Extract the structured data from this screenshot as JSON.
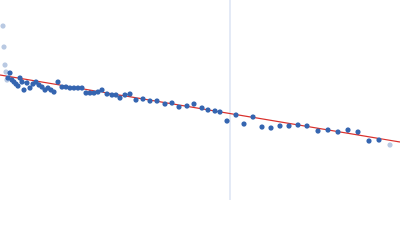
{
  "chart_data": {
    "type": "scatter",
    "xlim": [
      0,
      400
    ],
    "ylim": [
      0,
      200
    ],
    "vline": {
      "x": 230,
      "color": "#c9d5ec"
    },
    "series": [
      {
        "mode": "markers",
        "color": "#b9c9e2",
        "x": [
          3,
          4,
          5,
          6,
          7,
          390
        ],
        "values": [
          174,
          153,
          135,
          128,
          120,
          55
        ]
      },
      {
        "mode": "markers",
        "color": "#3565b0",
        "x": [
          8,
          10,
          12,
          14,
          16,
          18,
          20,
          22,
          24,
          27,
          30,
          33,
          36,
          39,
          42,
          45,
          48,
          51,
          54,
          58,
          62,
          66,
          70,
          74,
          78,
          82,
          86,
          90,
          94,
          98,
          102,
          107,
          112,
          116,
          120,
          125,
          130,
          136,
          143,
          150,
          157,
          165,
          172,
          179,
          187,
          194,
          202,
          208,
          215,
          220,
          227,
          236,
          244,
          253,
          262,
          271,
          280,
          289,
          298,
          307,
          318,
          328,
          338,
          348,
          358,
          369,
          379
        ],
        "values": [
          122,
          127,
          120,
          118,
          116,
          114,
          122,
          118,
          110,
          117,
          112,
          116,
          118,
          115,
          113,
          110,
          112,
          110,
          108,
          118,
          113,
          113,
          112,
          112,
          112,
          112,
          107,
          107,
          107,
          108,
          110,
          106,
          105,
          105,
          102,
          105,
          106,
          100,
          101,
          99,
          99,
          96,
          97,
          93,
          94,
          96,
          92,
          90,
          89,
          88,
          79,
          85,
          76,
          83,
          73,
          72,
          74,
          74,
          75,
          74,
          69,
          70,
          68,
          70,
          68,
          59,
          60
        ]
      },
      {
        "mode": "line",
        "color": "#d9302c",
        "x": [
          0,
          400
        ],
        "values": [
          125,
          58
        ]
      }
    ]
  }
}
